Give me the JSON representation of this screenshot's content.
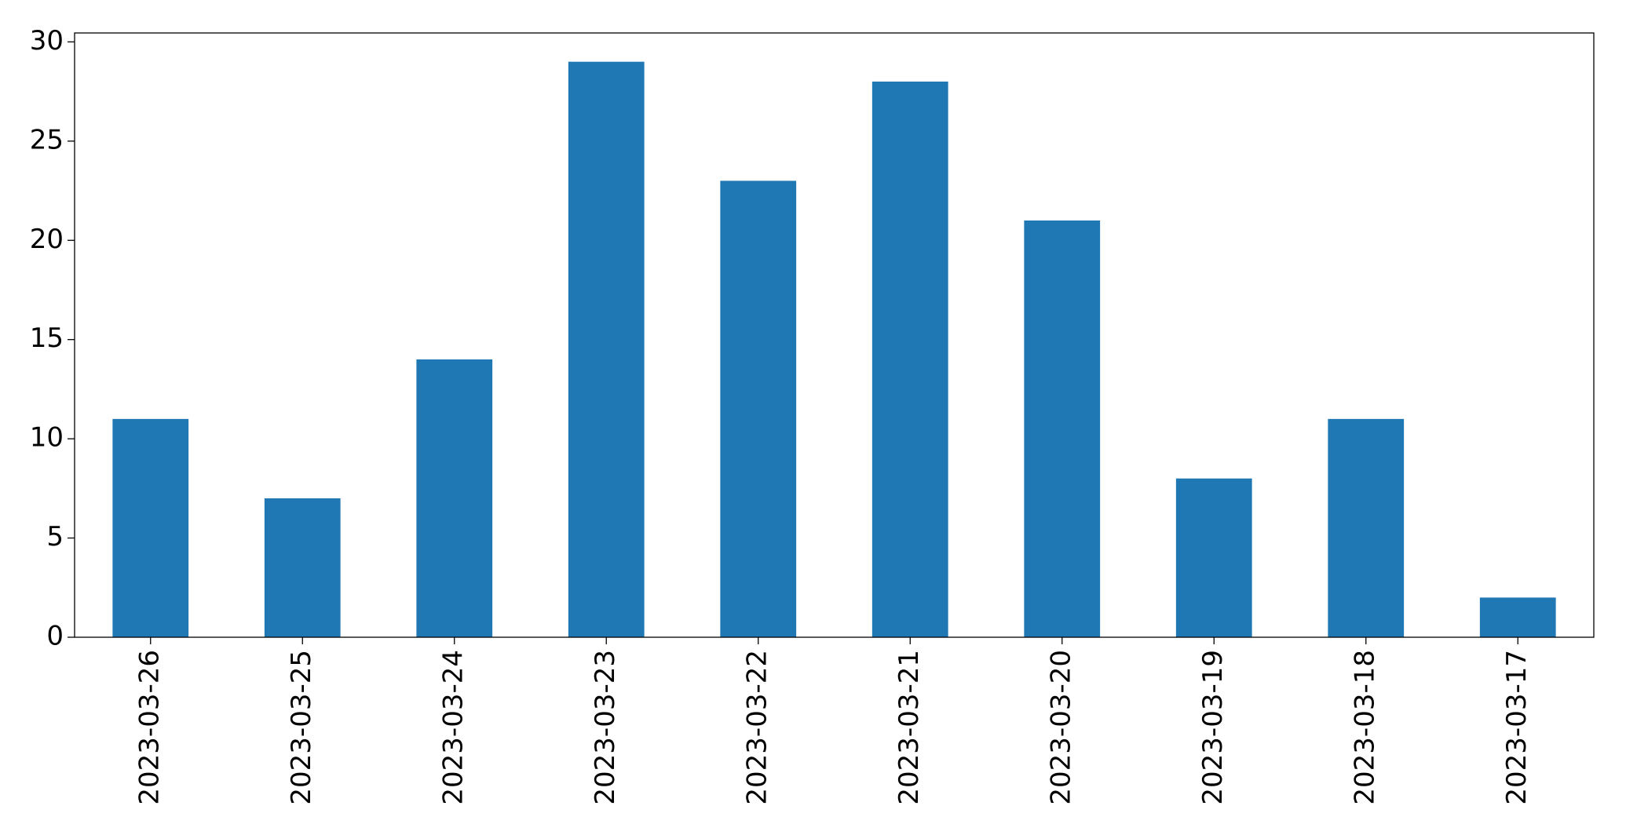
{
  "chart_data": {
    "type": "bar",
    "categories": [
      "2023-03-26",
      "2023-03-25",
      "2023-03-24",
      "2023-03-23",
      "2023-03-22",
      "2023-03-21",
      "2023-03-20",
      "2023-03-19",
      "2023-03-18",
      "2023-03-17"
    ],
    "values": [
      11,
      7,
      14,
      29,
      23,
      28,
      21,
      8,
      11,
      2
    ],
    "color": "#1f77b4",
    "ylim": [
      0,
      30.45
    ],
    "yticks": [
      0,
      5,
      10,
      15,
      20,
      25,
      30
    ],
    "grid": false
  }
}
